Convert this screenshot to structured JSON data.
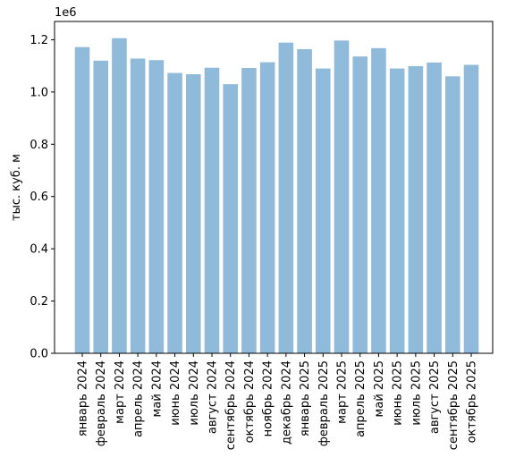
{
  "chart_data": {
    "type": "bar",
    "ylabel": "тыс. куб. м",
    "xlabel": "",
    "title": "",
    "scale_label": "1e6",
    "ylim": [
      0,
      1.27
    ],
    "bar_color": "#8fbad9",
    "yticks": [
      {
        "value": 0.0,
        "label": "0.0"
      },
      {
        "value": 0.2,
        "label": "0.2"
      },
      {
        "value": 0.4,
        "label": "0.4"
      },
      {
        "value": 0.6,
        "label": "0.6"
      },
      {
        "value": 0.8,
        "label": "0.8"
      },
      {
        "value": 1.0,
        "label": "1.0"
      },
      {
        "value": 1.2,
        "label": "1.2"
      }
    ],
    "categories": [
      "январь 2024",
      "февраль 2024",
      "март 2024",
      "апрель 2024",
      "май 2024",
      "июнь 2024",
      "июль 2024",
      "август 2024",
      "сентябрь 2024",
      "октябрь 2024",
      "ноябрь 2024",
      "декабрь 2024",
      "январь 2025",
      "февраль 2025",
      "март 2025",
      "апрель 2025",
      "май 2025",
      "июнь 2025",
      "июль 2025",
      "август 2025",
      "сентябрь 2025",
      "октябрь 2025"
    ],
    "values": [
      1.172,
      1.12,
      1.206,
      1.128,
      1.122,
      1.073,
      1.068,
      1.093,
      1.03,
      1.092,
      1.114,
      1.189,
      1.164,
      1.09,
      1.197,
      1.136,
      1.168,
      1.09,
      1.099,
      1.113,
      1.06,
      1.104
    ]
  }
}
